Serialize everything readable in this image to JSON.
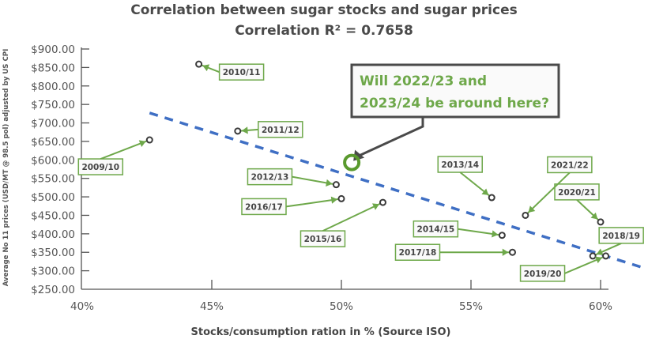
{
  "chart_data": {
    "type": "scatter",
    "title": "Correlation between sugar stocks and sugar prices",
    "subtitle": "Correlation R² = 0.7658",
    "xlabel": "Stocks/consumption ration in % (Source ISO)",
    "ylabel": "Average No 11 prices (USD/MT @ 98.5 pol) adjusted by US CPI",
    "xlim": [
      40,
      61.5
    ],
    "ylim": [
      250,
      900
    ],
    "x_ticks": [
      40,
      45,
      50,
      55,
      60
    ],
    "x_tick_labels": [
      "40%",
      "45%",
      "50%",
      "55%",
      "60%"
    ],
    "y_ticks": [
      250,
      300,
      350,
      400,
      450,
      500,
      550,
      600,
      650,
      700,
      750,
      800,
      850,
      900
    ],
    "y_tick_labels": [
      "$250.00",
      "$300.00",
      "$350.00",
      "$400.00",
      "$450.00",
      "$500.00",
      "$550.00",
      "$600.00",
      "$650.00",
      "$700.00",
      "$750.00",
      "$800.00",
      "$850.00",
      "$900.00"
    ],
    "grid": false,
    "points": [
      {
        "label": "2009/10",
        "x": 42.6,
        "y": 654
      },
      {
        "label": "2010/11",
        "x": 44.5,
        "y": 859
      },
      {
        "label": "2011/12",
        "x": 46.0,
        "y": 678
      },
      {
        "label": "2012/13",
        "x": 49.8,
        "y": 533
      },
      {
        "label": "2013/14",
        "x": 55.8,
        "y": 498
      },
      {
        "label": "2014/15",
        "x": 56.2,
        "y": 396
      },
      {
        "label": "2015/16",
        "x": 51.6,
        "y": 485
      },
      {
        "label": "2016/17",
        "x": 50.0,
        "y": 495
      },
      {
        "label": "2017/18",
        "x": 56.6,
        "y": 350
      },
      {
        "label": "2018/19",
        "x": 59.7,
        "y": 340
      },
      {
        "label": "2019/20",
        "x": 60.2,
        "y": 340
      },
      {
        "label": "2020/21",
        "x": 60.0,
        "y": 432
      },
      {
        "label": "2021/22",
        "x": 57.1,
        "y": 450
      }
    ],
    "trendline": {
      "style": "dashed",
      "color": "#3f6fc4",
      "x": [
        42.6,
        61.7
      ],
      "y": [
        727,
        307
      ]
    },
    "highlight": {
      "x": 50.4,
      "y": 593,
      "color": "#5a9a2e"
    },
    "annotation": {
      "line1": "Will 2022/23 and",
      "line2": "2023/24 be around here?"
    },
    "colors": {
      "label_border": "#6ea84a",
      "arrow": "#6ea84a",
      "point": "#3a3a3a",
      "callout_border": "#4a4a4a",
      "callout_text": "#6ea84a"
    }
  }
}
